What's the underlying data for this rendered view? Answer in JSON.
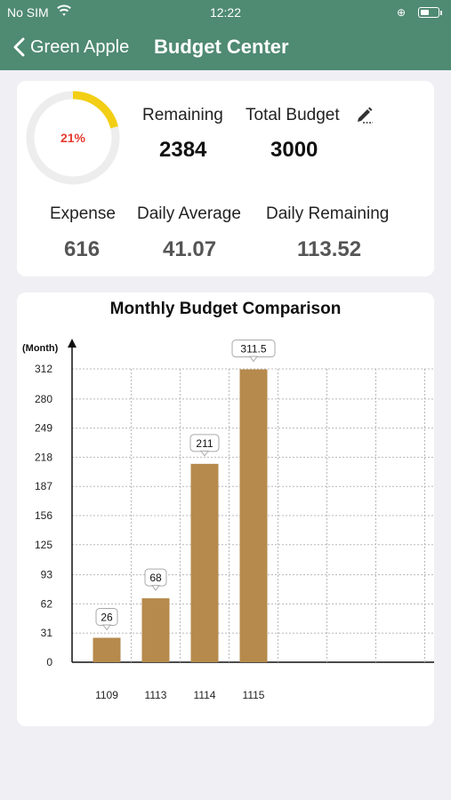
{
  "status_bar": {
    "carrier": "No SIM",
    "time": "12:22",
    "wifi_icon": "wifi-icon",
    "lock_icon": "orientation-lock-icon",
    "battery_icon": "battery-icon"
  },
  "nav": {
    "back_label": "Green Apple",
    "title": "Budget Center",
    "back_icon": "chevron-left-icon"
  },
  "colors": {
    "header": "#4f8a72",
    "ring": "#f2cf14",
    "percent": "#e53b2f",
    "bar": "#b68a4c"
  },
  "summary": {
    "progress_percent": 21,
    "progress_label": "21%",
    "remaining_label": "Remaining",
    "remaining_value": "2384",
    "total_label": "Total Budget",
    "total_value": "3000",
    "edit_icon": "pencil-icon",
    "expense_label": "Expense",
    "expense_value": "616",
    "daily_avg_label": "Daily Average",
    "daily_avg_value": "41.07",
    "daily_remaining_label": "Daily Remaining",
    "daily_remaining_value": "113.52"
  },
  "chart_data": {
    "type": "bar",
    "title": "Monthly Budget Comparison",
    "ylabel": "(Month)",
    "xlabel": "",
    "categories": [
      "1109",
      "1113",
      "1114",
      "1115"
    ],
    "values": [
      26,
      68,
      211,
      311.5
    ],
    "value_labels": [
      "26",
      "68",
      "211",
      "311.5"
    ],
    "yticks": [
      "0",
      "31",
      "62",
      "93",
      "125",
      "156",
      "187",
      "218",
      "249",
      "280",
      "312"
    ],
    "ylim": [
      0,
      312
    ],
    "grid": true
  }
}
